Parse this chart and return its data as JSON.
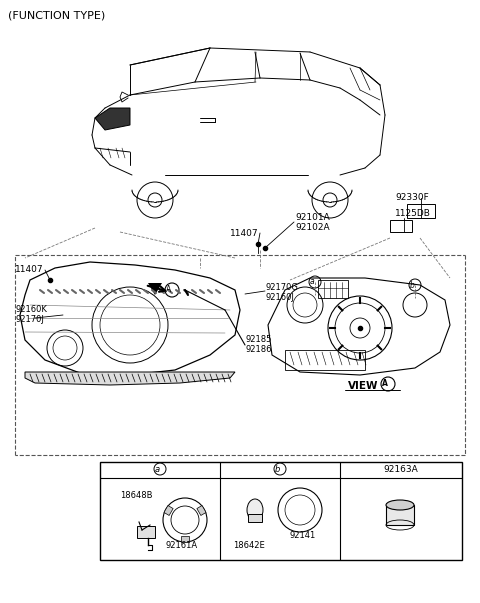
{
  "title": "(FUNCTION TYPE)",
  "bg_color": "#ffffff",
  "border_color": "#000000",
  "text_color": "#000000",
  "part_numbers": {
    "function_type": "(FUNCTION TYPE)",
    "11407_top": "11407",
    "11407_left": "11407",
    "92101A": "92101A",
    "92102A": "92102A",
    "92330F": "92330F",
    "1125DB": "1125DB",
    "92170G": "92170G",
    "92160J": "92160J",
    "92160K": "92160K",
    "92170J": "92170J",
    "92185": "92185",
    "92186": "92186",
    "view_a": "VIEW",
    "92163A": "92163A",
    "18648B": "18648B",
    "92161A": "92161A",
    "18642E": "18642E",
    "92141": "92141"
  }
}
